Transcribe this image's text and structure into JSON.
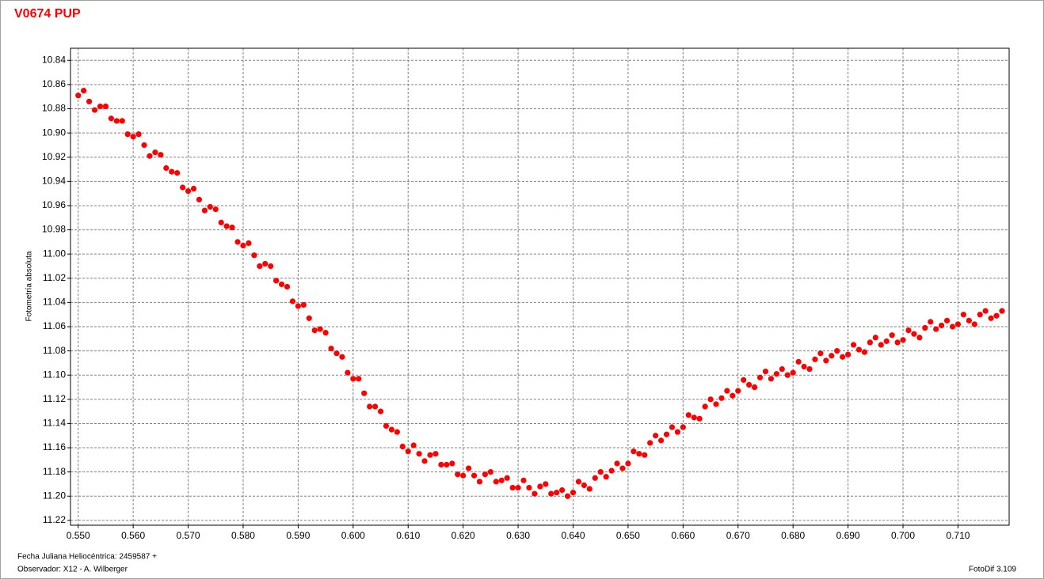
{
  "chart_data": {
    "type": "scatter",
    "title": "V0674 PUP",
    "y_label": "Fotometría absoluta",
    "x_label": "Fecha Juliana Heliocéntrica: 2459587 +",
    "observer": "Observador: X12 - A. Wilberger",
    "software": "FotoDif 3.109",
    "color": "#ff0000",
    "grid": true,
    "y_inverted": true,
    "xlim": [
      0.5486,
      0.7193
    ],
    "ylim": [
      10.83,
      11.224
    ],
    "xticks": [
      {
        "value": 0.55,
        "label": "0.550"
      },
      {
        "value": 0.56,
        "label": "0.560"
      },
      {
        "value": 0.57,
        "label": "0.570"
      },
      {
        "value": 0.58,
        "label": "0.580"
      },
      {
        "value": 0.59,
        "label": "0.590"
      },
      {
        "value": 0.6,
        "label": "0.600"
      },
      {
        "value": 0.61,
        "label": "0.610"
      },
      {
        "value": 0.62,
        "label": "0.620"
      },
      {
        "value": 0.63,
        "label": "0.630"
      },
      {
        "value": 0.64,
        "label": "0.640"
      },
      {
        "value": 0.65,
        "label": "0.650"
      },
      {
        "value": 0.66,
        "label": "0.660"
      },
      {
        "value": 0.67,
        "label": "0.670"
      },
      {
        "value": 0.68,
        "label": "0.680"
      },
      {
        "value": 0.69,
        "label": "0.690"
      },
      {
        "value": 0.7,
        "label": "0.700"
      },
      {
        "value": 0.71,
        "label": "0.710"
      }
    ],
    "yticks": [
      10.84,
      10.86,
      10.88,
      {
        "value": 10.9,
        "label": "10.90"
      },
      10.92,
      10.94,
      10.96,
      10.98,
      {
        "value": 11,
        "label": "11.00"
      },
      11.02,
      11.04,
      11.06,
      11.08,
      {
        "value": 11.1,
        "label": "11.10"
      },
      11.12,
      11.14,
      11.16,
      11.18,
      {
        "value": 11.2,
        "label": "11.20"
      },
      11.22
    ],
    "x": [
      0.55,
      0.551,
      0.552,
      0.553,
      0.554,
      0.555,
      0.556,
      0.557,
      0.558,
      0.559,
      0.56,
      0.561,
      0.562,
      0.563,
      0.564,
      0.565,
      0.566,
      0.567,
      0.568,
      0.569,
      0.57,
      0.571,
      0.572,
      0.573,
      0.574,
      0.575,
      0.576,
      0.577,
      0.578,
      0.579,
      0.58,
      0.581,
      0.582,
      0.583,
      0.584,
      0.585,
      0.586,
      0.587,
      0.588,
      0.589,
      0.59,
      0.591,
      0.592,
      0.593,
      0.594,
      0.595,
      0.596,
      0.597,
      0.598,
      0.599,
      0.6,
      0.601,
      0.602,
      0.603,
      0.604,
      0.605,
      0.606,
      0.607,
      0.608,
      0.609,
      0.61,
      0.611,
      0.612,
      0.613,
      0.614,
      0.615,
      0.616,
      0.617,
      0.618,
      0.619,
      0.62,
      0.621,
      0.622,
      0.623,
      0.624,
      0.625,
      0.626,
      0.627,
      0.628,
      0.629,
      0.63,
      0.631,
      0.632,
      0.633,
      0.634,
      0.635,
      0.636,
      0.637,
      0.638,
      0.639,
      0.64,
      0.641,
      0.642,
      0.643,
      0.644,
      0.645,
      0.646,
      0.647,
      0.648,
      0.649,
      0.65,
      0.651,
      0.652,
      0.653,
      0.654,
      0.655,
      0.656,
      0.657,
      0.658,
      0.659,
      0.66,
      0.661,
      0.662,
      0.663,
      0.664,
      0.665,
      0.666,
      0.667,
      0.668,
      0.669,
      0.67,
      0.671,
      0.672,
      0.673,
      0.674,
      0.675,
      0.676,
      0.677,
      0.678,
      0.679,
      0.68,
      0.681,
      0.682,
      0.683,
      0.684,
      0.685,
      0.686,
      0.687,
      0.688,
      0.689,
      0.69,
      0.691,
      0.692,
      0.693,
      0.694,
      0.695,
      0.696,
      0.697,
      0.698,
      0.699,
      0.7,
      0.701,
      0.702,
      0.703,
      0.704,
      0.705,
      0.706,
      0.707,
      0.708,
      0.709,
      0.71,
      0.711,
      0.712,
      0.713,
      0.714,
      0.715,
      0.716,
      0.717,
      0.718
    ],
    "values": [
      10.869,
      10.865,
      10.874,
      10.881,
      10.878,
      10.878,
      10.888,
      10.89,
      10.89,
      10.901,
      10.903,
      10.901,
      10.91,
      10.919,
      10.916,
      10.918,
      10.929,
      10.932,
      10.933,
      10.945,
      10.948,
      10.946,
      10.955,
      10.964,
      10.961,
      10.963,
      10.974,
      10.977,
      10.978,
      10.99,
      10.993,
      10.991,
      11.001,
      11.01,
      11.008,
      11.01,
      11.022,
      11.025,
      11.027,
      11.039,
      11.043,
      11.042,
      11.053,
      11.063,
      11.062,
      11.065,
      11.078,
      11.082,
      11.085,
      11.098,
      11.103,
      11.103,
      11.115,
      11.126,
      11.126,
      11.13,
      11.142,
      11.145,
      11.147,
      11.159,
      11.163,
      11.158,
      11.165,
      11.171,
      11.166,
      11.165,
      11.174,
      11.174,
      11.173,
      11.182,
      11.183,
      11.177,
      11.183,
      11.188,
      11.182,
      11.18,
      11.188,
      11.187,
      11.185,
      11.193,
      11.193,
      11.187,
      11.193,
      11.198,
      11.192,
      11.19,
      11.198,
      11.197,
      11.195,
      11.2,
      11.197,
      11.188,
      11.191,
      11.194,
      11.185,
      11.18,
      11.184,
      11.179,
      11.173,
      11.177,
      11.173,
      11.163,
      11.165,
      11.166,
      11.156,
      11.15,
      11.154,
      11.149,
      11.143,
      11.147,
      11.143,
      11.133,
      11.135,
      11.136,
      11.126,
      11.12,
      11.124,
      11.119,
      11.113,
      11.117,
      11.113,
      11.104,
      11.108,
      11.11,
      11.102,
      11.097,
      11.103,
      11.099,
      11.095,
      11.1,
      11.098,
      11.089,
      11.093,
      11.095,
      11.087,
      11.082,
      11.088,
      11.084,
      11.08,
      11.085,
      11.083,
      11.075,
      11.079,
      11.081,
      11.073,
      11.069,
      11.075,
      11.072,
      11.067,
      11.073,
      11.071,
      11.063,
      11.066,
      11.069,
      11.061,
      11.056,
      11.062,
      11.059,
      11.055,
      11.06,
      11.058,
      11.05,
      11.055,
      11.058,
      11.05,
      11.047,
      11.053,
      11.051,
      11.047
    ]
  }
}
